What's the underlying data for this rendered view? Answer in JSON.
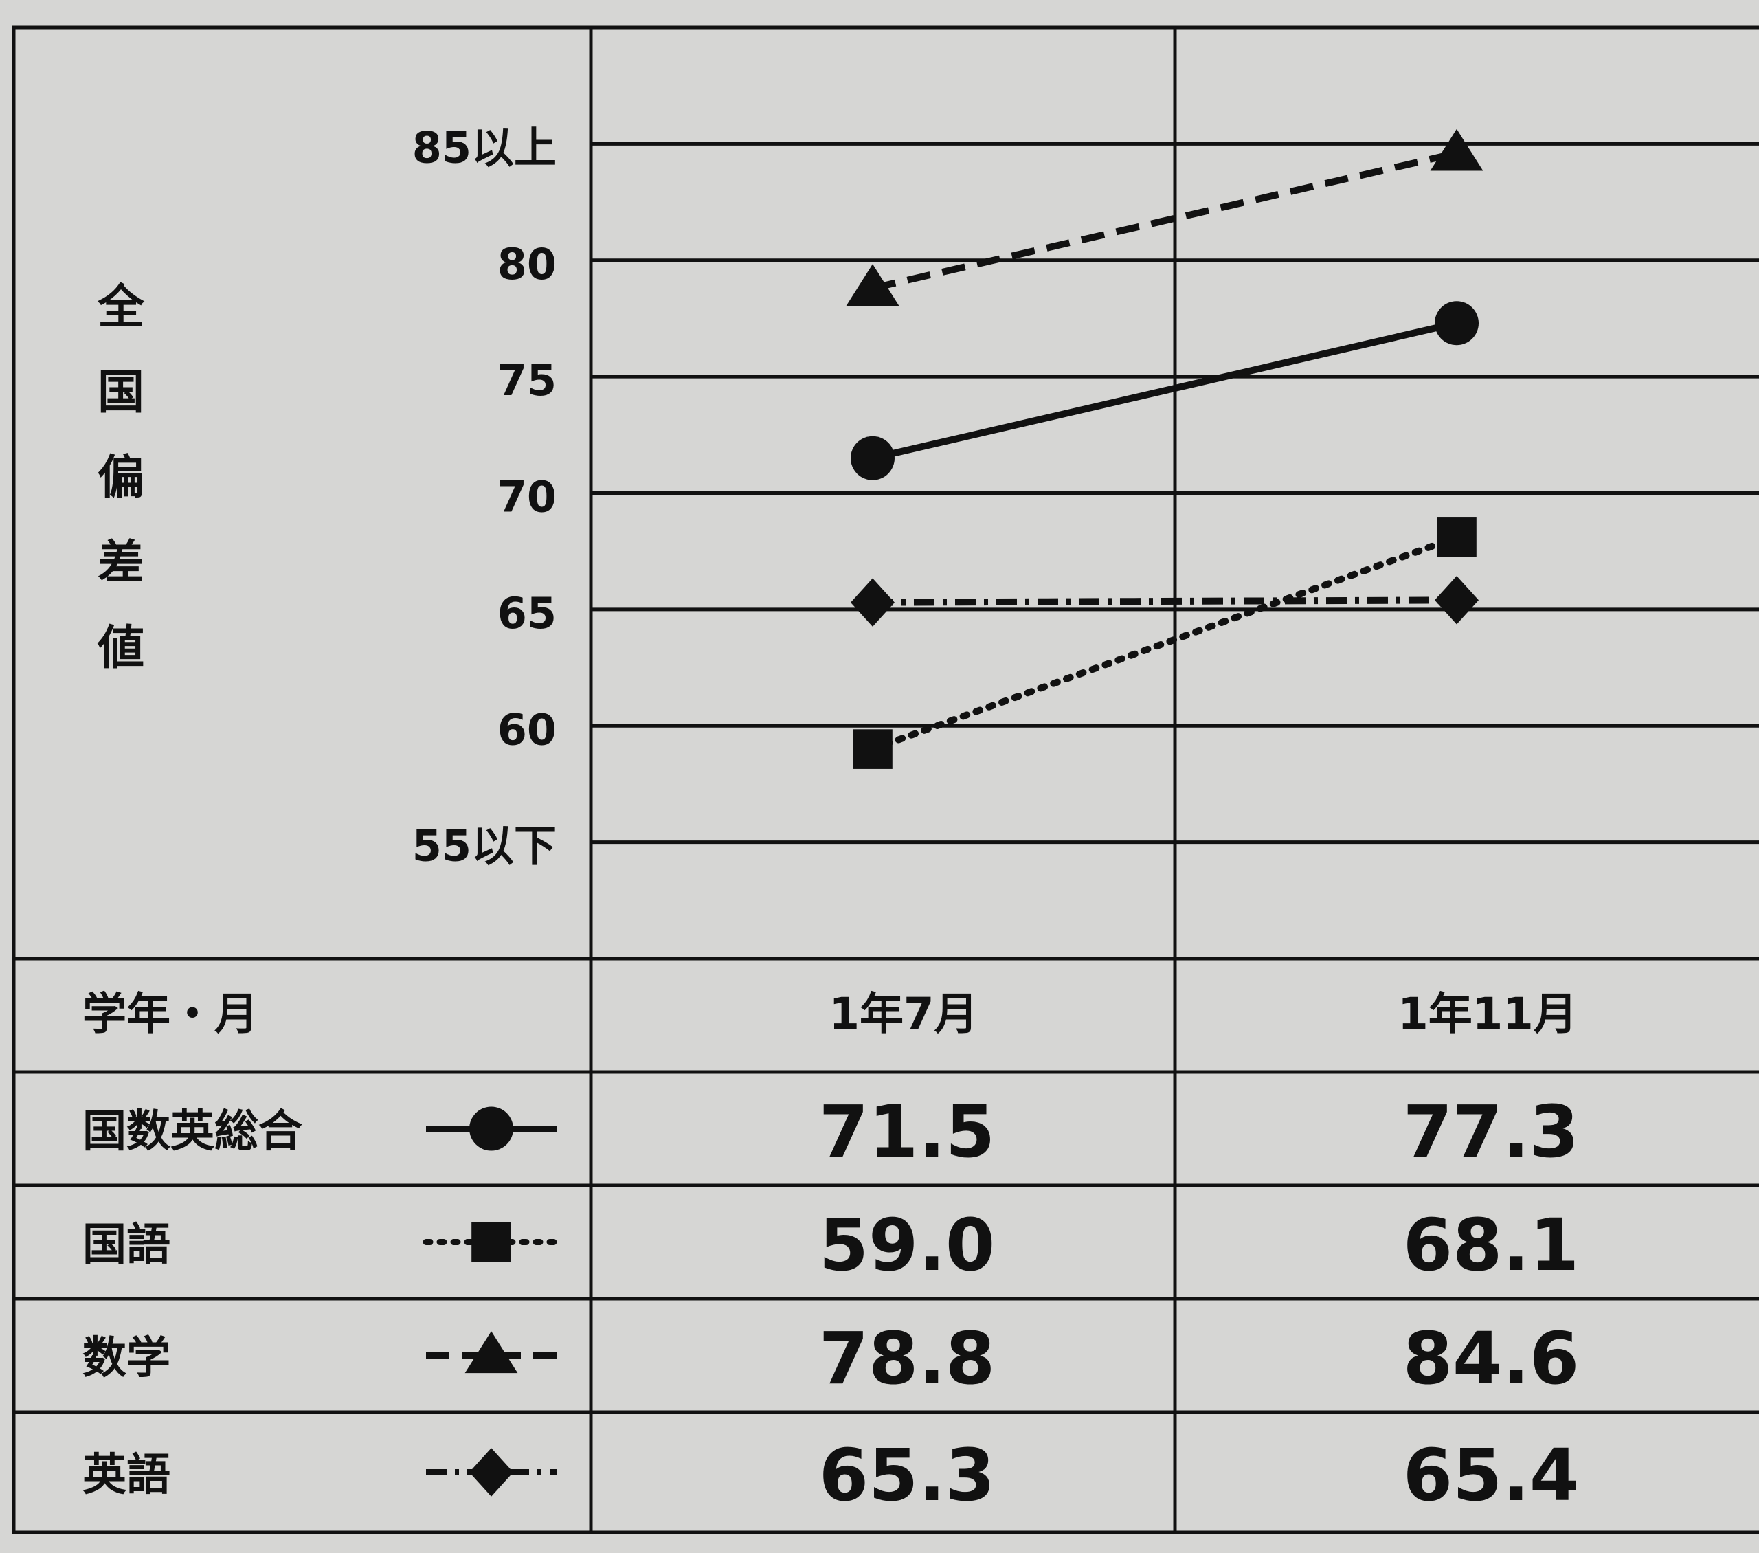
{
  "chart_data": {
    "type": "line",
    "y_label": "全国偏差値",
    "x_label": "学年・月",
    "categories": [
      "1年7月",
      "1年11月"
    ],
    "series": [
      {
        "name": "国数英総合",
        "color": "#111111",
        "marker": "circle",
        "line": "solid",
        "values": [
          71.5,
          77.3
        ],
        "value_labels": [
          "71.5",
          "77.3"
        ]
      },
      {
        "name": "国語",
        "color": "#111111",
        "marker": "square",
        "line": "dotted",
        "values": [
          59.0,
          68.1
        ],
        "value_labels": [
          "59.0",
          "68.1"
        ]
      },
      {
        "name": "数学",
        "color": "#111111",
        "marker": "triangle",
        "line": "dashed",
        "values": [
          78.8,
          84.6
        ],
        "value_labels": [
          "78.8",
          "84.6"
        ]
      },
      {
        "name": "英語",
        "color": "#111111",
        "marker": "diamond",
        "line": "dashdot",
        "values": [
          65.3,
          65.4
        ],
        "value_labels": [
          "65.3",
          "65.4"
        ]
      }
    ],
    "ylim": [
      50,
      90
    ],
    "yticks": [
      {
        "value": 55,
        "label": "55以下"
      },
      60,
      65,
      70,
      75,
      80,
      {
        "value": 85,
        "label": "85以上"
      }
    ],
    "grid": true
  }
}
